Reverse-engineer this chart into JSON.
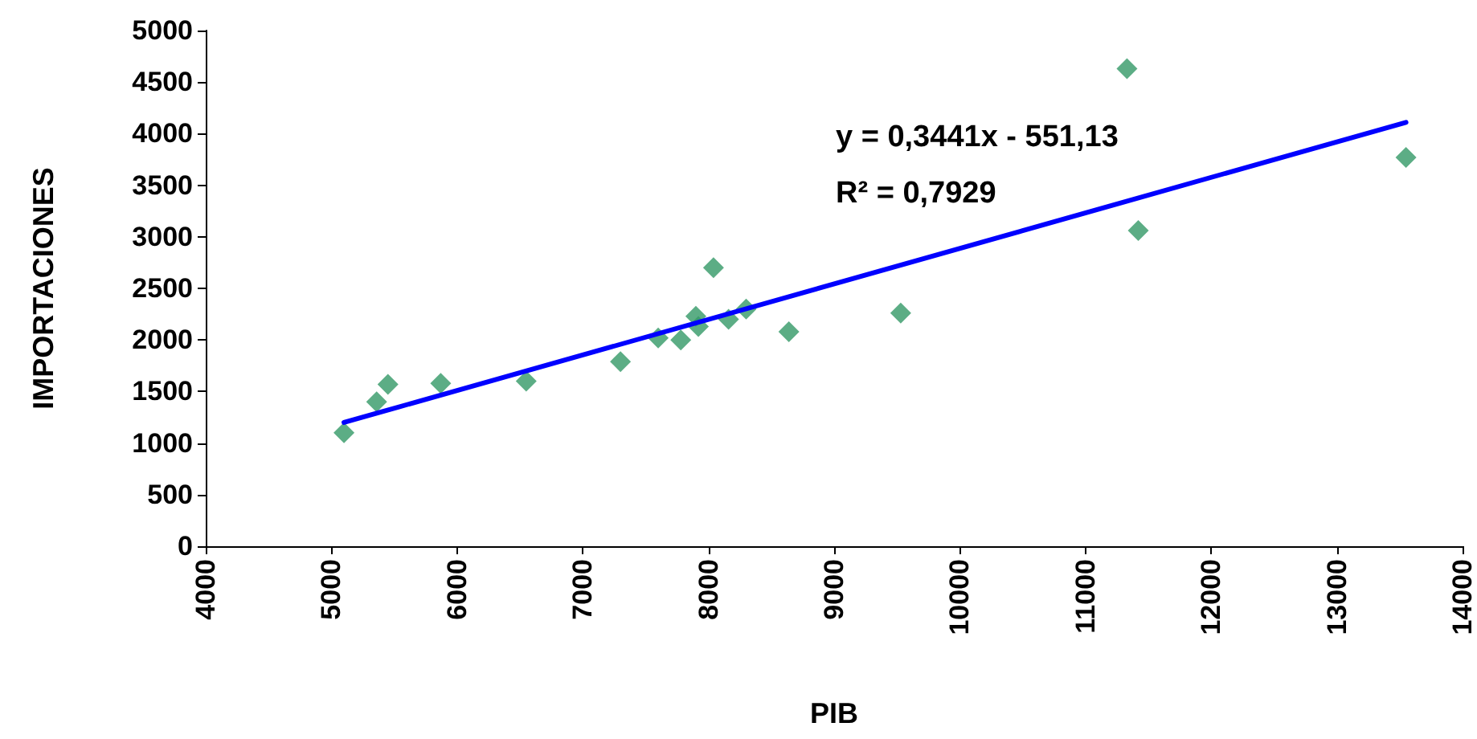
{
  "chart_data": {
    "type": "scatter",
    "xlabel": "PIB",
    "ylabel": "IMPORTACIONES",
    "annotations": [
      "y = 0,3441x - 551,13",
      "R² = 0,7929"
    ],
    "series": [
      {
        "color": "#339966",
        "marker": "diamond",
        "x": [
          5100,
          5360,
          5450,
          5870,
          6550,
          7300,
          7600,
          7780,
          7900,
          7920,
          8040,
          8160,
          8300,
          8640,
          9530,
          11330,
          11420,
          13550
        ],
        "values": [
          1100,
          1400,
          1570,
          1580,
          1600,
          1790,
          2020,
          2000,
          2230,
          2130,
          2700,
          2200,
          2300,
          2080,
          2260,
          4630,
          3060,
          3770
        ]
      },
      {
        "type": "line",
        "color": "#0000ff",
        "marker": "none",
        "line_style": "solid",
        "x": [
          5100,
          13550
        ],
        "values": [
          1200,
          4110
        ]
      }
    ],
    "xlim": [
      4000,
      14000
    ],
    "xticks": [
      4000,
      5000,
      6000,
      7000,
      8000,
      9000,
      10000,
      11000,
      12000,
      13000,
      14000
    ],
    "ylim": [
      0,
      5000
    ],
    "yticks": [
      0,
      500,
      1000,
      1500,
      2000,
      2500,
      3000,
      3500,
      4000,
      4500,
      5000
    ],
    "grid": false
  }
}
